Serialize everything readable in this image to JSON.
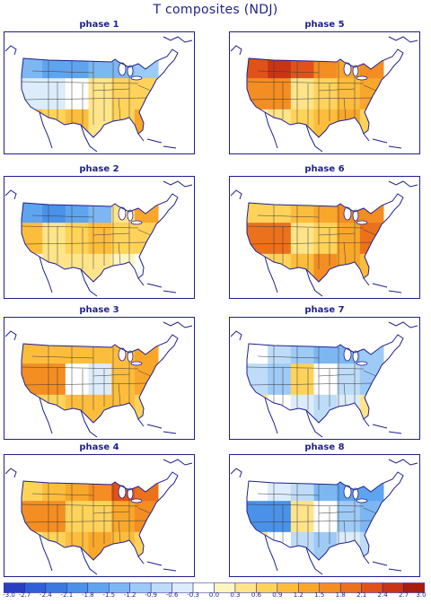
{
  "title": "T composites (NDJ)",
  "panels": [
    {
      "label": "phase 1",
      "pattern": [
        -1.5,
        -1.8,
        -1.8,
        -1.5,
        -1.5,
        -1.2,
        -0.6,
        -0.6,
        -0.3,
        0.3,
        0.6,
        0.6,
        0.9,
        0.6,
        0.9,
        0.3,
        0.6,
        1.2
      ]
    },
    {
      "label": "phase 2",
      "pattern": [
        -1.8,
        -2.1,
        -1.8,
        -1.5,
        0.3,
        1.2,
        0.9,
        0.3,
        0.6,
        0.9,
        0.6,
        0.6,
        -0.3,
        0.3,
        0.3,
        0.3,
        0.0,
        -0.3
      ]
    },
    {
      "label": "phase 3",
      "pattern": [
        0.9,
        0.9,
        0.9,
        0.9,
        0.9,
        1.2,
        1.5,
        1.5,
        -0.3,
        -0.6,
        0.9,
        1.2,
        0.6,
        0.6,
        0.9,
        0.9,
        0.9,
        0.6
      ]
    },
    {
      "label": "phase 5",
      "pattern": [
        2.1,
        2.4,
        2.1,
        1.5,
        1.2,
        1.5,
        1.5,
        1.5,
        0.3,
        0.6,
        0.9,
        1.2,
        0.0,
        0.3,
        0.6,
        0.9,
        1.2,
        0.6
      ]
    },
    {
      "label": "phase 6",
      "pattern": [
        0.6,
        0.6,
        0.9,
        1.2,
        1.5,
        1.5,
        1.8,
        1.8,
        0.3,
        0.6,
        1.2,
        1.8,
        0.3,
        0.6,
        0.9,
        1.5,
        1.2,
        0.9
      ]
    },
    {
      "label": "phase 7",
      "pattern": [
        -0.3,
        -0.9,
        -1.2,
        -1.5,
        -1.5,
        -1.2,
        -0.9,
        -1.2,
        0.6,
        -0.3,
        -0.9,
        -1.2,
        0.3,
        -0.3,
        -0.6,
        -0.9,
        -0.6,
        0.3
      ]
    },
    {
      "label": "phase 4",
      "pattern": [
        0.6,
        0.9,
        1.2,
        1.5,
        2.1,
        1.8,
        1.5,
        1.5,
        0.6,
        0.6,
        1.2,
        1.5,
        0.3,
        0.6,
        0.9,
        1.2,
        0.9,
        0.6
      ]
    },
    {
      "label": "phase 8",
      "pattern": [
        -0.3,
        -0.6,
        -0.9,
        -1.5,
        -1.8,
        -1.8,
        -2.1,
        -2.1,
        0.3,
        -0.3,
        -1.2,
        -1.5,
        0.3,
        -0.3,
        -0.9,
        -1.2,
        -0.6,
        -0.9
      ]
    }
  ],
  "colorbar": {
    "labels": [
      "-3.0",
      "-2.7",
      "-2.4",
      "-2.1",
      "-1.8",
      "-1.5",
      "-1.2",
      "-0.9",
      "-0.6",
      "-0.3",
      "0.0",
      "0.3",
      "0.6",
      "0.9",
      "1.2",
      "1.5",
      "1.8",
      "2.1",
      "2.4",
      "2.7",
      "3.0"
    ],
    "colors": [
      "#2a3fbf",
      "#2f5fd6",
      "#3a79e0",
      "#4a91e8",
      "#5fa4ee",
      "#7db7f2",
      "#9ecaf6",
      "#bedcf8",
      "#dcecfb",
      "#ffffff",
      "#fff5c0",
      "#ffe48a",
      "#ffd35a",
      "#fdbd3c",
      "#f9a72b",
      "#f48d22",
      "#ec711c",
      "#e0521a",
      "#c93415",
      "#a91c10"
    ]
  }
}
